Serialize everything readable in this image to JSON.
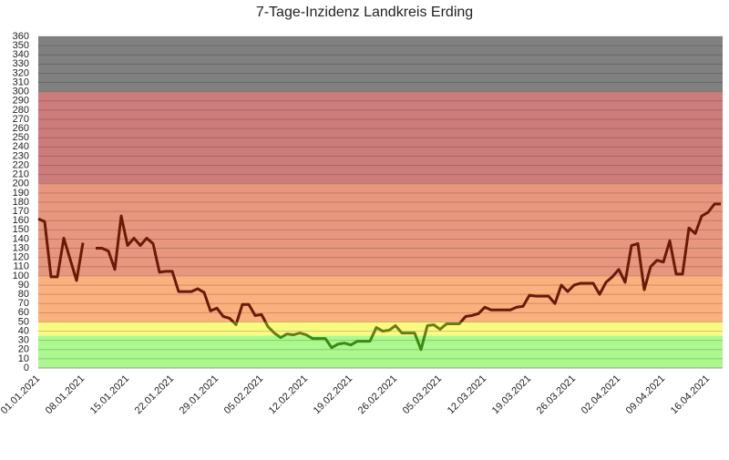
{
  "chart_data": {
    "type": "line",
    "title": "7-Tage-Inzidenz Landkreis Erding",
    "categories": [
      "01.01.2021",
      null,
      null,
      null,
      null,
      null,
      null,
      "08.01.2021",
      null,
      null,
      null,
      null,
      null,
      null,
      "15.01.2021",
      null,
      null,
      null,
      null,
      null,
      null,
      "22.01.2021",
      null,
      null,
      null,
      null,
      null,
      null,
      "29.01.2021",
      null,
      null,
      null,
      null,
      null,
      null,
      "05.02.2021",
      null,
      null,
      null,
      null,
      null,
      null,
      "12.02.2021",
      null,
      null,
      null,
      null,
      null,
      null,
      "19.02.2021",
      null,
      null,
      null,
      null,
      null,
      null,
      "26.02.2021",
      null,
      null,
      null,
      null,
      null,
      null,
      "05.03.2021",
      null,
      null,
      null,
      null,
      null,
      null,
      "12.03.2021",
      null,
      null,
      null,
      null,
      null,
      null,
      "19.03.2021",
      null,
      null,
      null,
      null,
      null,
      null,
      "26.03.2021",
      null,
      null,
      null,
      null,
      null,
      null,
      "02.04.2021",
      null,
      null,
      null,
      null,
      null,
      null,
      "09.04.2021",
      null,
      null,
      null,
      null,
      null,
      null,
      "16.04.2021",
      null,
      null
    ],
    "values": [
      162,
      159,
      99,
      99,
      141,
      118,
      95,
      136,
      null,
      130,
      130,
      127,
      107,
      165,
      133,
      141,
      133,
      141,
      135,
      104,
      105,
      105,
      83,
      83,
      83,
      86,
      82,
      62,
      65,
      56,
      54,
      47,
      69,
      69,
      57,
      58,
      45,
      38,
      33,
      37,
      36,
      38,
      36,
      32,
      32,
      32,
      22,
      26,
      27,
      25,
      29,
      29,
      29,
      44,
      40,
      41,
      46,
      38,
      38,
      38,
      20,
      46,
      47,
      42,
      48,
      48,
      48,
      56,
      57,
      59,
      66,
      63,
      63,
      63,
      63,
      66,
      67,
      79,
      78,
      78,
      78,
      70,
      90,
      83,
      90,
      92,
      92,
      92,
      80,
      93,
      99,
      107,
      93,
      133,
      135,
      85,
      110,
      117,
      115,
      138,
      102,
      102,
      152,
      146,
      165,
      169,
      178,
      178
    ],
    "ylim": [
      0,
      360
    ],
    "yticks": [
      0,
      10,
      20,
      30,
      40,
      50,
      60,
      70,
      80,
      90,
      100,
      110,
      120,
      130,
      140,
      150,
      160,
      170,
      180,
      190,
      200,
      210,
      220,
      230,
      240,
      250,
      260,
      270,
      280,
      290,
      300,
      310,
      320,
      330,
      340,
      350,
      360
    ],
    "grid": true,
    "bands": [
      {
        "from": 0,
        "to": 35,
        "color": "#aaf88e",
        "line_color": "#3c8a12"
      },
      {
        "from": 35,
        "to": 50,
        "color": "#fbfa80",
        "line_color": "#6e7a14"
      },
      {
        "from": 50,
        "to": 100,
        "color": "#fbb07e",
        "line_color": "#6a1a06"
      },
      {
        "from": 100,
        "to": 200,
        "color": "#e8977e",
        "line_color": "#6a1a06"
      },
      {
        "from": 200,
        "to": 300,
        "color": "#cd7c7c",
        "line_color": "#6a1a06"
      },
      {
        "from": 300,
        "to": 360,
        "color": "#808080",
        "line_color": "#6a1a06"
      }
    ]
  }
}
